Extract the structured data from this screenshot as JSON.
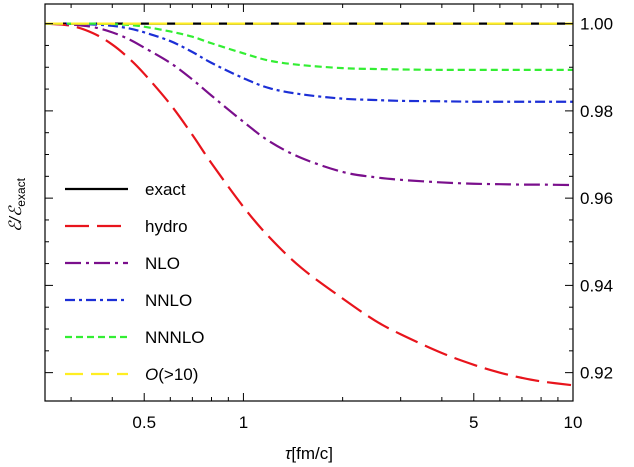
{
  "chart_data": {
    "type": "line",
    "xlabel_symbol": "τ",
    "xlabel_unit": "[fm/c]",
    "ylabel_main": "ℰ/ℰ",
    "ylabel_sub": "exact",
    "xscale": "log",
    "xlim": [
      0.25,
      10
    ],
    "ylim": [
      0.9135,
      1.0045
    ],
    "y_axis_side": "right",
    "grid": false,
    "legend_position": "left-middle",
    "x_ticks": [
      {
        "value": 0.5,
        "label": "0.5"
      },
      {
        "value": 1,
        "label": "1"
      },
      {
        "value": 5,
        "label": "5"
      },
      {
        "value": 10,
        "label": "10"
      }
    ],
    "x_minor_ticks": [
      0.3,
      0.4,
      0.6,
      0.7,
      0.8,
      0.9,
      2,
      3,
      4,
      6,
      7,
      8,
      9
    ],
    "y_ticks": [
      {
        "value": 0.92,
        "label": "0.92"
      },
      {
        "value": 0.94,
        "label": "0.94"
      },
      {
        "value": 0.96,
        "label": "0.96"
      },
      {
        "value": 0.98,
        "label": "0.98"
      },
      {
        "value": 1.0,
        "label": "1.00"
      }
    ],
    "y_minor_ticks": [
      0.925,
      0.93,
      0.935,
      0.945,
      0.95,
      0.955,
      0.965,
      0.97,
      0.975,
      0.985,
      0.99,
      0.995
    ],
    "x": [
      0.25,
      0.3,
      0.35,
      0.4,
      0.45,
      0.5,
      0.6,
      0.7,
      0.8,
      1.0,
      1.2,
      1.5,
      2.0,
      2.5,
      3.0,
      4.0,
      5.0,
      6.0,
      7.0,
      8.0,
      10.0
    ],
    "series": [
      {
        "name": "exact",
        "legend_suffix": "",
        "color": "#000000",
        "dash": "",
        "width": 2.2,
        "values": [
          1.0,
          1.0,
          1.0,
          1.0,
          1.0,
          1.0,
          1.0,
          1.0,
          1.0,
          1.0,
          1.0,
          1.0,
          1.0,
          1.0,
          1.0,
          1.0,
          1.0,
          1.0,
          1.0,
          1.0,
          1.0
        ]
      },
      {
        "name": "hydro",
        "legend_suffix": "",
        "color": "#e8141c",
        "dash": "24,8",
        "width": 2.2,
        "values": [
          1.0,
          0.9995,
          0.9978,
          0.9952,
          0.992,
          0.9885,
          0.9815,
          0.9745,
          0.968,
          0.958,
          0.951,
          0.944,
          0.937,
          0.932,
          0.9288,
          0.9245,
          0.9218,
          0.92,
          0.9188,
          0.918,
          0.9171
        ]
      },
      {
        "name": "NLO",
        "legend_suffix": "",
        "color": "#7a0f8c",
        "dash": "16,5,3,5",
        "width": 2.2,
        "values": [
          1.0,
          0.9998,
          0.9992,
          0.998,
          0.9964,
          0.9945,
          0.991,
          0.9872,
          0.9835,
          0.9775,
          0.973,
          0.9692,
          0.966,
          0.9648,
          0.9642,
          0.9636,
          0.9633,
          0.9632,
          0.9631,
          0.9631,
          0.963
        ]
      },
      {
        "name": "NNLO",
        "legend_suffix": "",
        "color": "#1c2fd6",
        "dash": "10,4,3,4",
        "width": 2.2,
        "values": [
          1.0,
          1.0,
          0.9998,
          0.9995,
          0.9989,
          0.998,
          0.996,
          0.9935,
          0.991,
          0.9875,
          0.9852,
          0.9838,
          0.9828,
          0.9825,
          0.9823,
          0.9822,
          0.9821,
          0.9821,
          0.9821,
          0.9821,
          0.9821
        ]
      },
      {
        "name": "NNNLO",
        "legend_suffix": "",
        "color": "#33ee33",
        "dash": "7,4",
        "width": 2.2,
        "values": [
          1.0,
          1.0,
          1.0,
          0.9999,
          0.9997,
          0.9993,
          0.9982,
          0.997,
          0.9955,
          0.9932,
          0.9915,
          0.9905,
          0.9898,
          0.9896,
          0.9895,
          0.9894,
          0.9894,
          0.9894,
          0.9894,
          0.9894,
          0.9894
        ]
      },
      {
        "name": "O",
        "legend_suffix": "(>10)",
        "color": "#ffee22",
        "dash": "18,8",
        "width": 2.2,
        "values": [
          1.0,
          1.0,
          1.0,
          1.0,
          1.0,
          1.0,
          1.0,
          1.0,
          1.0,
          1.0,
          1.0,
          1.0,
          1.0,
          1.0,
          1.0,
          1.0,
          1.0,
          1.0,
          1.0,
          1.0,
          1.0
        ]
      }
    ]
  }
}
